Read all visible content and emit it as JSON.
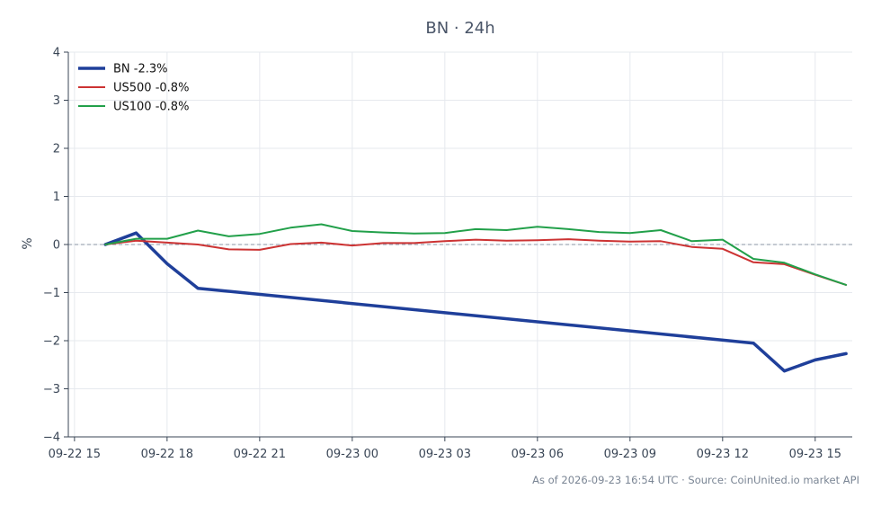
{
  "chart_data": {
    "type": "line",
    "title": "BN · 24h",
    "ylabel": "%",
    "xlabel": "",
    "ylim": [
      -4,
      4
    ],
    "yticks": [
      -4,
      -3,
      -2,
      -1,
      0,
      1,
      2,
      3,
      4
    ],
    "ytick_labels": [
      "−4",
      "−3",
      "−2",
      "−1",
      "0",
      "1",
      "2",
      "3",
      "4"
    ],
    "x_unit": "hours",
    "xlim": [
      15.8,
      41.2
    ],
    "xticks": [
      16,
      19,
      22,
      25,
      28,
      31,
      34,
      37,
      40
    ],
    "xtick_labels": [
      "09-22 15",
      "09-22 18",
      "09-22 21",
      "09-23 00",
      "09-23 03",
      "09-23 06",
      "09-23 09",
      "09-23 12",
      "09-23 15"
    ],
    "x": [
      17,
      18,
      19,
      20,
      21,
      22,
      23,
      24,
      25,
      26,
      27,
      28,
      29,
      30,
      31,
      32,
      33,
      34,
      35,
      36,
      37,
      38,
      39,
      40,
      41
    ],
    "grid": true,
    "zero_line": true,
    "legend_position": "top-left",
    "series": [
      {
        "name": "BN -2.3%",
        "color": "#1f3f9a",
        "width": 3.5,
        "x": [
          17,
          18,
          19,
          20,
          38,
          39,
          40,
          41,
          42
        ],
        "values": [
          0.0,
          0.24,
          -0.4,
          -0.91,
          -2.05,
          -2.63,
          -2.4,
          -2.27,
          null
        ]
      },
      {
        "name": "US500 -0.8%",
        "color": "#cc3333",
        "width": 2,
        "values": [
          0.0,
          0.08,
          0.04,
          0.0,
          -0.1,
          -0.11,
          0.01,
          0.04,
          -0.02,
          0.03,
          0.03,
          0.07,
          0.1,
          0.08,
          0.09,
          0.11,
          0.08,
          0.06,
          0.07,
          -0.05,
          -0.09,
          -0.37,
          -0.41,
          -0.63,
          -0.84
        ]
      },
      {
        "name": "US100 -0.8%",
        "color": "#22a04a",
        "width": 2,
        "values": [
          0.0,
          0.12,
          0.12,
          0.29,
          0.17,
          0.22,
          0.35,
          0.42,
          0.28,
          0.25,
          0.23,
          0.24,
          0.32,
          0.3,
          0.37,
          0.32,
          0.26,
          0.24,
          0.3,
          0.07,
          0.1,
          -0.3,
          -0.38,
          -0.62,
          -0.84
        ]
      }
    ]
  },
  "footer": "As of 2026-09-23 16:54 UTC · Source: CoinUnited.io market API",
  "colors": {
    "axis": "#3a4656",
    "grid": "#e6e9ee",
    "zero_line": "#8a94a6"
  }
}
